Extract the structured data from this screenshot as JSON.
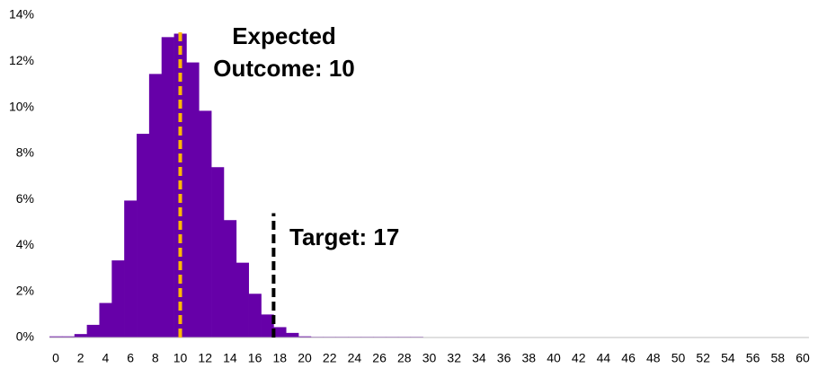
{
  "chart_data": {
    "type": "bar",
    "categories": [
      0,
      null,
      2,
      null,
      4,
      null,
      6,
      null,
      8,
      null,
      10,
      null,
      12,
      null,
      14,
      null,
      16,
      null,
      18,
      null,
      20,
      null,
      22,
      null,
      24,
      null,
      26,
      null,
      28,
      null,
      30,
      null,
      32,
      null,
      34,
      null,
      36,
      null,
      38,
      null,
      40,
      null,
      42,
      null,
      44,
      null,
      46,
      null,
      48,
      null,
      50,
      null,
      52,
      null,
      54,
      null,
      56,
      null,
      58,
      null,
      60
    ],
    "values": [
      0.05,
      0.05,
      0.15,
      0.55,
      1.5,
      3.35,
      5.95,
      8.85,
      11.45,
      13.05,
      13.2,
      11.95,
      9.85,
      7.4,
      5.1,
      3.25,
      1.9,
      1.0,
      0.45,
      0.2,
      0.05,
      0.03,
      0.03,
      0.03,
      0.03,
      0.03,
      0.03,
      0.03,
      0.03,
      0.03,
      0,
      0,
      0,
      0,
      0,
      0,
      0,
      0,
      0,
      0,
      0,
      0,
      0,
      0,
      0,
      0,
      0,
      0,
      0,
      0,
      0,
      0,
      0,
      0,
      0,
      0,
      0,
      0,
      0,
      0,
      0
    ],
    "color": "#6600a8",
    "ylim": [
      0,
      14
    ],
    "yticks": [
      {
        "value": 0,
        "label": "0%"
      },
      {
        "value": 2,
        "label": "2%"
      },
      {
        "value": 4,
        "label": "4%"
      },
      {
        "value": 6,
        "label": "6%"
      },
      {
        "value": 8,
        "label": "8%"
      },
      {
        "value": 10,
        "label": "10%"
      },
      {
        "value": 12,
        "label": "12%"
      },
      {
        "value": 14,
        "label": "14%"
      }
    ],
    "annotations": [
      {
        "x": 10,
        "y_top": 13.4,
        "color": "#ffb800",
        "text": [
          "Expected",
          "Outcome: 10"
        ]
      },
      {
        "x": 17.5,
        "y_top": 5.4,
        "color": "#000000",
        "text": [
          "Target: 17"
        ]
      }
    ]
  }
}
